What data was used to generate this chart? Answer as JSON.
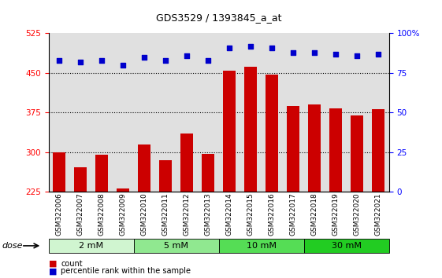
{
  "title": "GDS3529 / 1393845_a_at",
  "samples": [
    "GSM322006",
    "GSM322007",
    "GSM322008",
    "GSM322009",
    "GSM322010",
    "GSM322011",
    "GSM322012",
    "GSM322013",
    "GSM322014",
    "GSM322015",
    "GSM322016",
    "GSM322017",
    "GSM322018",
    "GSM322019",
    "GSM322020",
    "GSM322021"
  ],
  "bar_values": [
    300,
    272,
    296,
    232,
    315,
    285,
    335,
    297,
    455,
    462,
    447,
    388,
    390,
    383,
    370,
    382
  ],
  "scatter_values": [
    83,
    82,
    83,
    80,
    85,
    83,
    86,
    83,
    91,
    92,
    91,
    88,
    88,
    87,
    86,
    87
  ],
  "bar_color": "#cc0000",
  "scatter_color": "#0000cc",
  "ylim_left": [
    225,
    525
  ],
  "ylim_right": [
    0,
    100
  ],
  "yticks_left": [
    225,
    300,
    375,
    450,
    525
  ],
  "yticks_right": [
    0,
    25,
    50,
    75,
    100
  ],
  "ytick_labels_right": [
    "0",
    "25",
    "50",
    "75",
    "100%"
  ],
  "hlines": [
    300,
    375,
    450
  ],
  "doses": [
    {
      "label": "2 mM",
      "start": 0,
      "end": 4,
      "color": "#d0f5d0"
    },
    {
      "label": "5 mM",
      "start": 4,
      "end": 8,
      "color": "#90e890"
    },
    {
      "label": "10 mM",
      "start": 8,
      "end": 12,
      "color": "#55dd55"
    },
    {
      "label": "30 mM",
      "start": 12,
      "end": 16,
      "color": "#22cc22"
    }
  ],
  "legend_bar_label": "count",
  "legend_scatter_label": "percentile rank within the sample",
  "dose_label": "dose",
  "background_color": "#ffffff",
  "plot_bg_color": "#e0e0e0",
  "bar_bottom": 225
}
